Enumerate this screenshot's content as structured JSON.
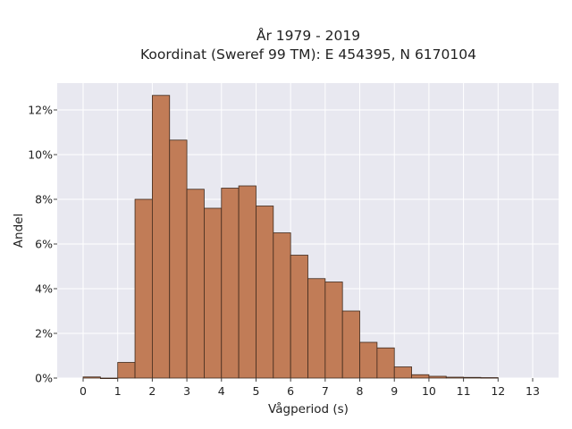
{
  "chart_data": {
    "type": "bar",
    "title": "År 1979 - 2019",
    "subtitle": "Koordinat (Sweref 99 TM): E 454395, N 6170104",
    "xlabel": "Vågperiod (s)",
    "ylabel": "Andel",
    "bin_width": 0.5,
    "bins": [
      0,
      0.5,
      1,
      1.5,
      2,
      2.5,
      3,
      3.5,
      4,
      4.5,
      5,
      5.5,
      6,
      6.5,
      7,
      7.5,
      8,
      8.5,
      9,
      9.5,
      10,
      10.5,
      11,
      11.5
    ],
    "values": [
      0.05,
      0.0,
      0.7,
      8.0,
      12.65,
      10.65,
      8.45,
      7.6,
      8.5,
      8.6,
      7.7,
      6.5,
      5.5,
      4.45,
      4.3,
      3.0,
      1.6,
      1.35,
      0.5,
      0.15,
      0.08,
      0.04,
      0.03,
      0.02
    ],
    "xticks": [
      "0",
      "1",
      "2",
      "3",
      "4",
      "5",
      "6",
      "7",
      "8",
      "9",
      "10",
      "11",
      "12",
      "13"
    ],
    "yticks": [
      "0%",
      "2%",
      "4%",
      "6%",
      "8%",
      "10%",
      "12%"
    ],
    "xlim": [
      -0.75,
      13.75
    ],
    "ylim": [
      0,
      13.2
    ],
    "grid": true,
    "colors": {
      "bar_fill": "#c17c57",
      "bar_stroke": "#3f2a1d",
      "plot_bg": "#e8e8f0",
      "grid": "#ffffff"
    }
  }
}
